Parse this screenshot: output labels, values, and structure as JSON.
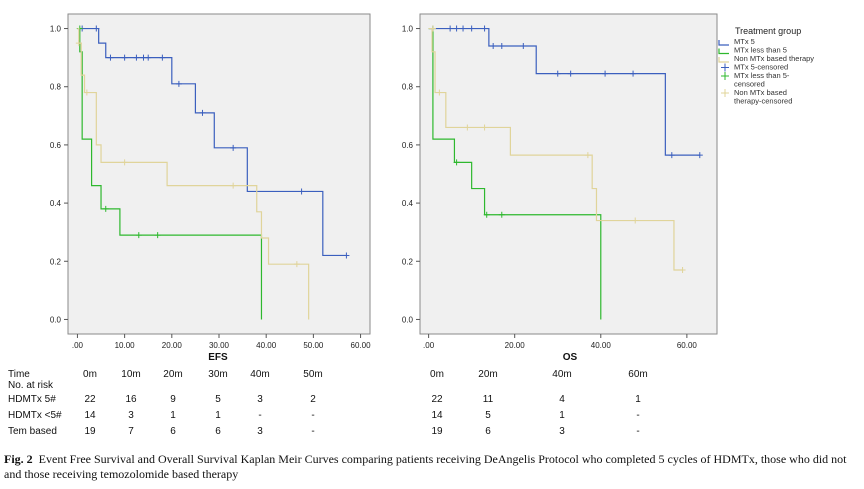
{
  "legend": {
    "title": "Treatment group",
    "items": [
      "MTx 5",
      "MTx less than 5",
      "Non MTx based therapy",
      "MTx 5-censored",
      "MTx less than 5-\ncensored",
      "Non MTx based\ntherapy-censored"
    ]
  },
  "colors": {
    "mtx5": "#3b5fbe",
    "mtxlt5": "#2eb82e",
    "nonmtx": "#e0d49a"
  },
  "risk_table": {
    "time_label": "Time",
    "at_risk_label": "No. at risk",
    "row_labels": [
      "HDMTx 5#",
      "HDMTx <5#",
      "Tem based"
    ],
    "efs_times": [
      "0m",
      "10m",
      "20m",
      "30m",
      "40m",
      "50m"
    ],
    "efs_rows": [
      [
        "22",
        "16",
        "9",
        "5",
        "3",
        "2"
      ],
      [
        "14",
        "3",
        "1",
        "1",
        "-",
        "-"
      ],
      [
        "19",
        "7",
        "6",
        "6",
        "3",
        "-"
      ]
    ],
    "os_times": [
      "0m",
      "20m",
      "40m",
      "60m"
    ],
    "os_rows": [
      [
        "22",
        "11",
        "4",
        "1"
      ],
      [
        "14",
        "5",
        "1",
        "-"
      ],
      [
        "19",
        "6",
        "3",
        "-"
      ]
    ]
  },
  "caption": {
    "label": "Fig. 2",
    "text": "Event Free Survival and Overall Survival Kaplan Meir Curves comparing patients receiving DeAngelis Protocol who completed 5 cycles of HDMTx, those who did not and those receiving temozolomide based therapy"
  },
  "chart_data": [
    {
      "type": "line",
      "title": "EFS",
      "xlabel": "EFS",
      "ylabel": "",
      "xlim": [
        -2,
        62
      ],
      "ylim": [
        -0.05,
        1.05
      ],
      "xticks": [
        ".00",
        "10.00",
        "20.00",
        "30.00",
        "40.00",
        "50.00",
        "60.00"
      ],
      "xtick_values": [
        0,
        10,
        20,
        30,
        40,
        50,
        60
      ],
      "yticks": [
        "0.0",
        "0.2",
        "0.4",
        "0.6",
        "0.8",
        "1.0"
      ],
      "ytick_values": [
        0,
        0.2,
        0.4,
        0.6,
        0.8,
        1.0
      ],
      "series": [
        {
          "name": "MTx 5",
          "color_key": "mtx5",
          "x": [
            0,
            4.5,
            6,
            20,
            25,
            29,
            36,
            52,
            57
          ],
          "y": [
            1.0,
            0.95,
            0.9,
            0.81,
            0.71,
            0.59,
            0.44,
            0.22,
            0.22
          ],
          "censored": [
            [
              1,
              1.0
            ],
            [
              4,
              1.0
            ],
            [
              7,
              0.9
            ],
            [
              10,
              0.9
            ],
            [
              12.5,
              0.9
            ],
            [
              14,
              0.9
            ],
            [
              15,
              0.9
            ],
            [
              18,
              0.9
            ],
            [
              21.5,
              0.81
            ],
            [
              26.5,
              0.71
            ],
            [
              33,
              0.59
            ],
            [
              47.5,
              0.44
            ],
            [
              57,
              0.22
            ]
          ]
        },
        {
          "name": "MTx less than 5",
          "color_key": "mtxlt5",
          "x": [
            0,
            0.5,
            1,
            3,
            5,
            9,
            39
          ],
          "y": [
            1.0,
            0.92,
            0.62,
            0.46,
            0.38,
            0.29,
            0.0
          ],
          "censored": [
            [
              0.5,
              1.0
            ],
            [
              6,
              0.38
            ],
            [
              13,
              0.29
            ],
            [
              17,
              0.29
            ]
          ]
        },
        {
          "name": "Non MTx based therapy",
          "color_key": "nonmtx",
          "x": [
            0,
            0.3,
            0.8,
            1.5,
            4,
            5,
            19,
            38,
            39,
            40.5,
            49,
            49
          ],
          "y": [
            1.0,
            0.95,
            0.84,
            0.78,
            0.6,
            0.54,
            0.46,
            0.37,
            0.28,
            0.19,
            0.19,
            0.0
          ],
          "censored": [
            [
              0.3,
              0.95
            ],
            [
              2,
              0.78
            ],
            [
              10,
              0.54
            ],
            [
              33,
              0.46
            ],
            [
              46.5,
              0.19
            ]
          ]
        }
      ]
    },
    {
      "type": "line",
      "title": "OS",
      "xlabel": "OS",
      "ylabel": "",
      "xlim": [
        -2,
        67
      ],
      "ylim": [
        -0.05,
        1.05
      ],
      "xticks": [
        ".00",
        "20.00",
        "40.00",
        "60.00"
      ],
      "xtick_values": [
        0,
        20,
        40,
        60
      ],
      "yticks": [
        "0.0",
        "0.2",
        "0.4",
        "0.6",
        "0.8",
        "1.0"
      ],
      "ytick_values": [
        0,
        0.2,
        0.4,
        0.6,
        0.8,
        1.0
      ],
      "series": [
        {
          "name": "MTx 5",
          "color_key": "mtx5",
          "x": [
            0,
            14,
            25,
            55,
            63
          ],
          "y": [
            1.0,
            0.94,
            0.845,
            0.565,
            0.565
          ],
          "censored": [
            [
              1,
              1.0
            ],
            [
              5,
              1.0
            ],
            [
              6.5,
              1.0
            ],
            [
              8,
              1.0
            ],
            [
              10,
              1.0
            ],
            [
              13,
              1.0
            ],
            [
              15,
              0.94
            ],
            [
              17,
              0.94
            ],
            [
              22,
              0.94
            ],
            [
              30,
              0.845
            ],
            [
              33,
              0.845
            ],
            [
              41,
              0.845
            ],
            [
              47.5,
              0.845
            ],
            [
              56.5,
              0.565
            ],
            [
              63,
              0.565
            ]
          ]
        },
        {
          "name": "MTx less than 5",
          "color_key": "mtxlt5",
          "x": [
            0,
            1,
            6,
            10,
            13,
            40
          ],
          "y": [
            1.0,
            0.62,
            0.54,
            0.45,
            0.36,
            0.0
          ],
          "censored": [
            [
              1,
              1.0
            ],
            [
              6.5,
              0.54
            ],
            [
              13.5,
              0.36
            ],
            [
              17,
              0.36
            ]
          ]
        },
        {
          "name": "Non MTx based therapy",
          "color_key": "nonmtx",
          "x": [
            0,
            0.8,
            1.5,
            4,
            19,
            38,
            39,
            48,
            57,
            59
          ],
          "y": [
            1.0,
            0.92,
            0.78,
            0.66,
            0.565,
            0.45,
            0.34,
            0.34,
            0.17,
            0.17
          ],
          "censored": [
            [
              1,
              1.0
            ],
            [
              2.5,
              0.78
            ],
            [
              9,
              0.66
            ],
            [
              13,
              0.66
            ],
            [
              37,
              0.565
            ],
            [
              48,
              0.34
            ],
            [
              59,
              0.17
            ]
          ]
        }
      ]
    }
  ]
}
